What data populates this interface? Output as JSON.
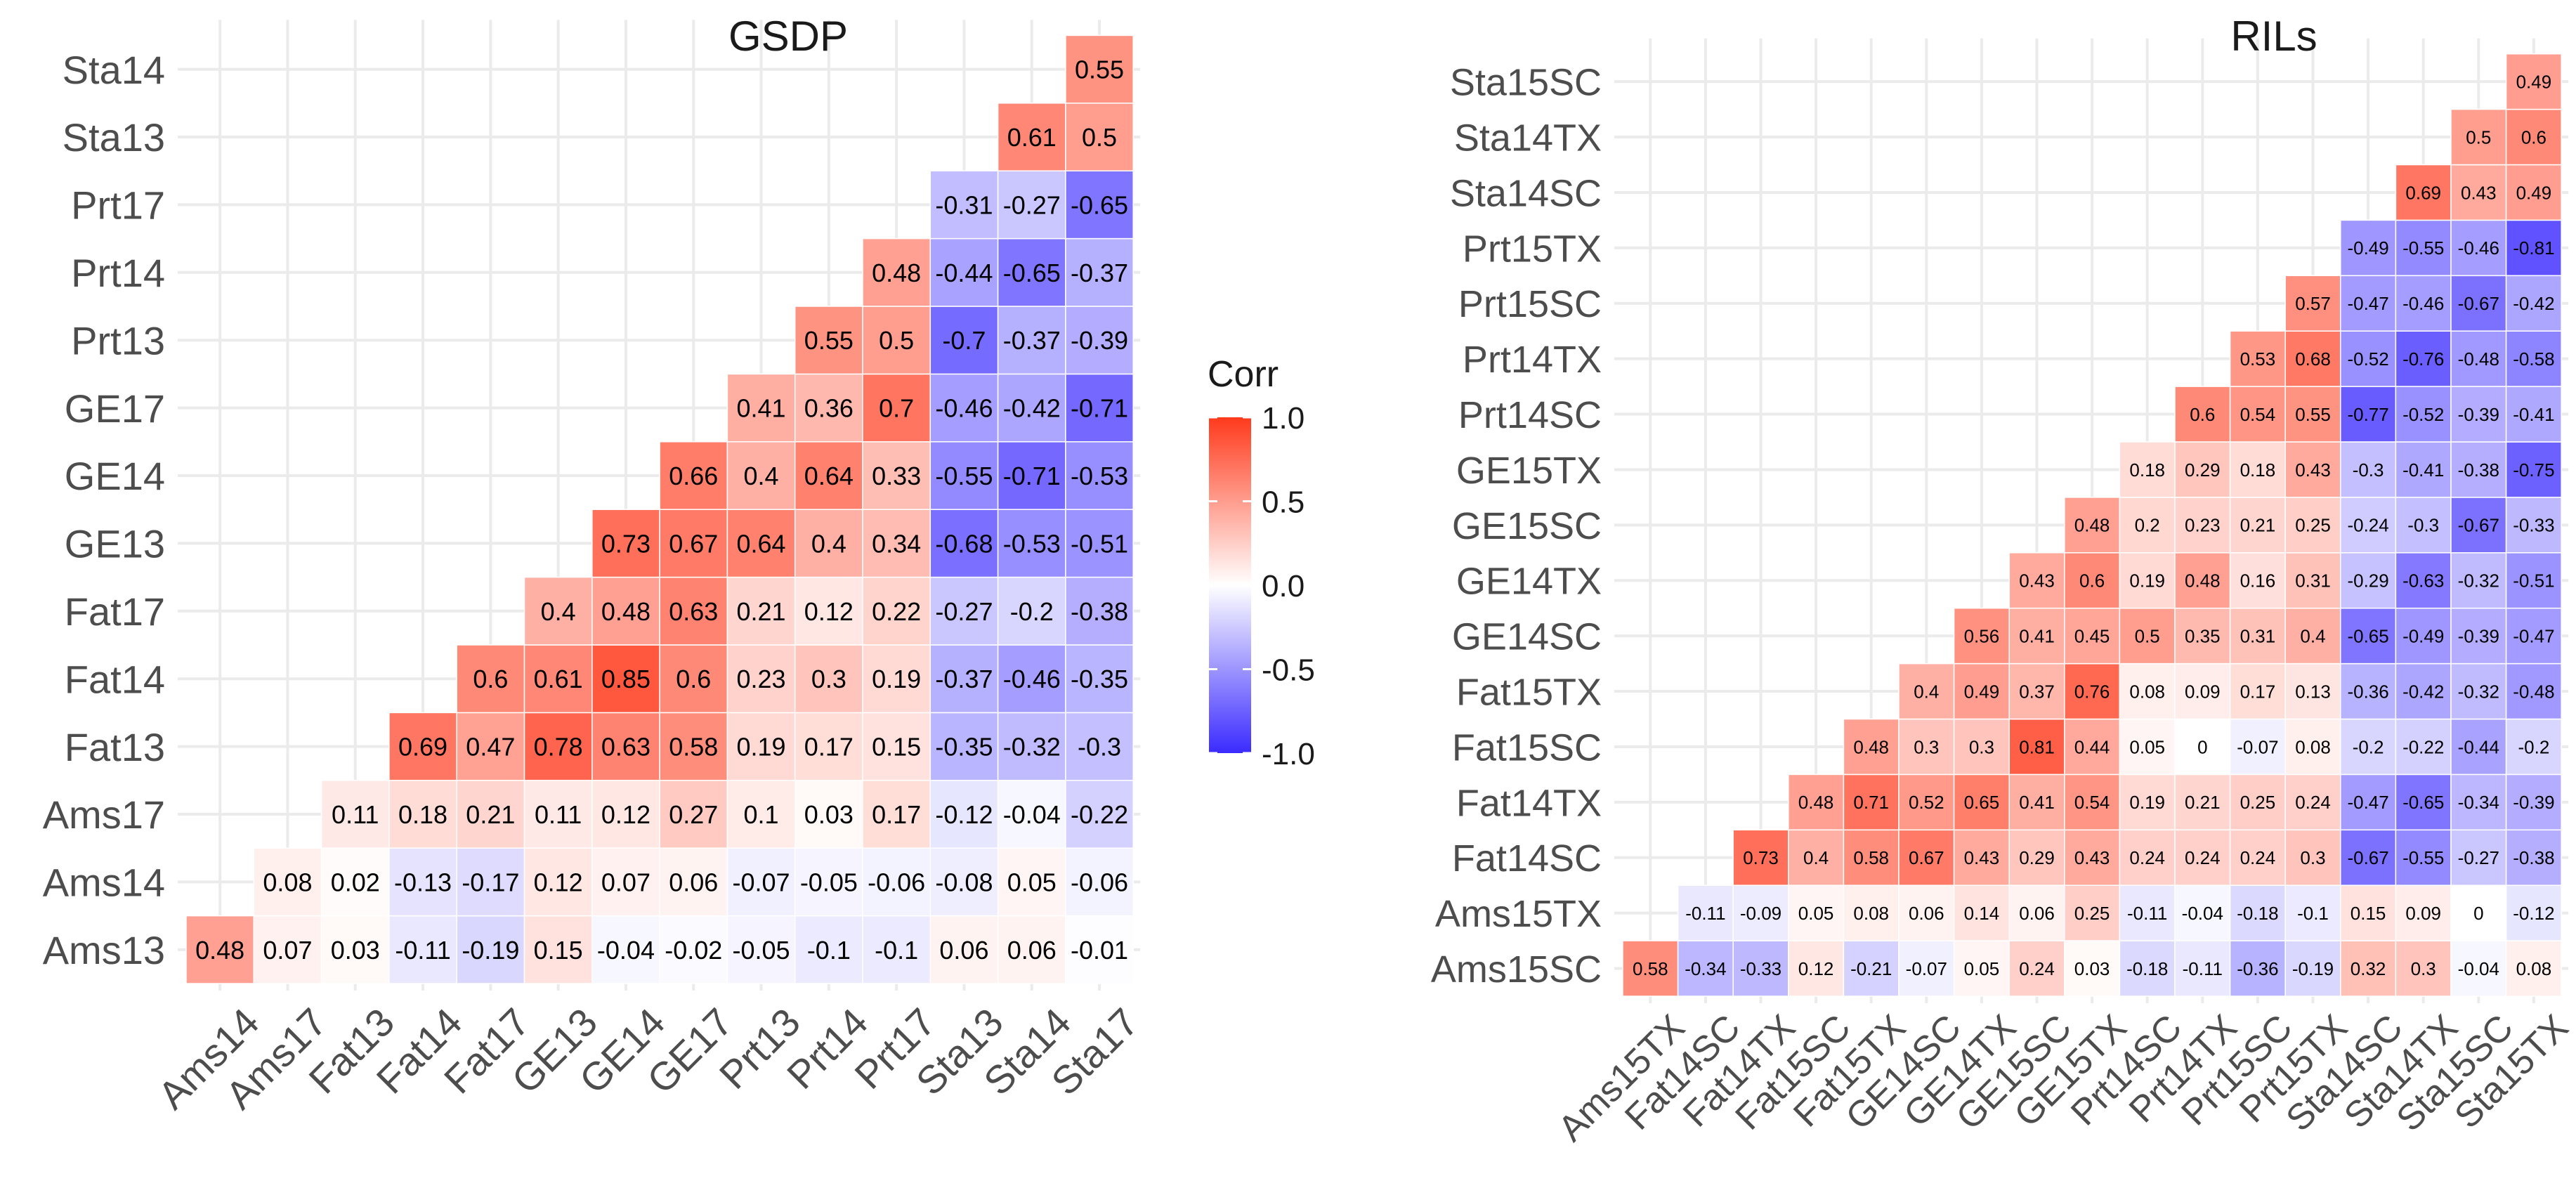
{
  "legend": {
    "title": "Corr",
    "ticks": [
      "1.0",
      "0.5",
      "0.0",
      "-0.5",
      "-1.0"
    ],
    "tick_values": [
      1,
      0.5,
      0,
      -0.5,
      -1
    ],
    "colors": {
      "low": "#3b2bff",
      "mid": "#ffffff",
      "high": "#ff3a1c"
    }
  },
  "chart_data": [
    {
      "type": "heatmap",
      "title": "GSDP",
      "x_labels": [
        "Ams14",
        "Ams17",
        "Fat13",
        "Fat14",
        "Fat17",
        "GE13",
        "GE14",
        "GE17",
        "Prt13",
        "Prt14",
        "Prt17",
        "Sta13",
        "Sta14",
        "Sta17"
      ],
      "y_labels": [
        "Ams13",
        "Ams14",
        "Ams17",
        "Fat13",
        "Fat14",
        "Fat17",
        "GE13",
        "GE14",
        "GE17",
        "Prt13",
        "Prt14",
        "Prt17",
        "Sta13",
        "Sta14"
      ],
      "rows": [
        [
          "0.48",
          "0.07",
          "0.03",
          "-0.11",
          "-0.19",
          "0.15",
          "-0.04",
          "-0.02",
          "-0.05",
          "-0.1",
          "-0.1",
          "0.06",
          "0.06",
          "-0.01"
        ],
        [
          "0.08",
          "0.02",
          "-0.13",
          "-0.17",
          "0.12",
          "0.07",
          "0.06",
          "-0.07",
          "-0.05",
          "-0.06",
          "-0.08",
          "0.05",
          "-0.06"
        ],
        [
          "0.11",
          "0.18",
          "0.21",
          "0.11",
          "0.12",
          "0.27",
          "0.1",
          "0.03",
          "0.17",
          "-0.12",
          "-0.04",
          "-0.22"
        ],
        [
          "0.69",
          "0.47",
          "0.78",
          "0.63",
          "0.58",
          "0.19",
          "0.17",
          "0.15",
          "-0.35",
          "-0.32",
          "-0.3"
        ],
        [
          "0.6",
          "0.61",
          "0.85",
          "0.6",
          "0.23",
          "0.3",
          "0.19",
          "-0.37",
          "-0.46",
          "-0.35"
        ],
        [
          "0.4",
          "0.48",
          "0.63",
          "0.21",
          "0.12",
          "0.22",
          "-0.27",
          "-0.2",
          "-0.38"
        ],
        [
          "0.73",
          "0.67",
          "0.64",
          "0.4",
          "0.34",
          "-0.68",
          "-0.53",
          "-0.51"
        ],
        [
          "0.66",
          "0.4",
          "0.64",
          "0.33",
          "-0.55",
          "-0.71",
          "-0.53"
        ],
        [
          "0.41",
          "0.36",
          "0.7",
          "-0.46",
          "-0.42",
          "-0.71"
        ],
        [
          "0.55",
          "0.5",
          "-0.7",
          "-0.37",
          "-0.39"
        ],
        [
          "0.48",
          "-0.44",
          "-0.65",
          "-0.37"
        ],
        [
          "-0.31",
          "-0.27",
          "-0.65"
        ],
        [
          "0.61",
          "0.5"
        ],
        [
          "0.55"
        ]
      ]
    },
    {
      "type": "heatmap",
      "title": "RILs",
      "x_labels": [
        "Ams15TX",
        "Fat14SC",
        "Fat14TX",
        "Fat15SC",
        "Fat15TX",
        "GE14SC",
        "GE14TX",
        "GE15SC",
        "GE15TX",
        "Prt14SC",
        "Prt14TX",
        "Prt15SC",
        "Prt15TX",
        "Sta14SC",
        "Sta14TX",
        "Sta15SC",
        "Sta15TX"
      ],
      "y_labels": [
        "Ams15SC",
        "Ams15TX",
        "Fat14SC",
        "Fat14TX",
        "Fat15SC",
        "Fat15TX",
        "GE14SC",
        "GE14TX",
        "GE15SC",
        "GE15TX",
        "Prt14SC",
        "Prt14TX",
        "Prt15SC",
        "Prt15TX",
        "Sta14SC",
        "Sta14TX",
        "Sta15SC"
      ],
      "rows": [
        [
          "0.58",
          "-0.34",
          "-0.33",
          "0.12",
          "-0.21",
          "-0.07",
          "0.05",
          "0.24",
          "0.03",
          "-0.18",
          "-0.11",
          "-0.36",
          "-0.19",
          "0.32",
          "0.3",
          "-0.04",
          "0.08"
        ],
        [
          "-0.11",
          "-0.09",
          "0.05",
          "0.08",
          "0.06",
          "0.14",
          "0.06",
          "0.25",
          "-0.11",
          "-0.04",
          "-0.18",
          "-0.1",
          "0.15",
          "0.09",
          "0",
          "-0.12"
        ],
        [
          "0.73",
          "0.4",
          "0.58",
          "0.67",
          "0.43",
          "0.29",
          "0.43",
          "0.24",
          "0.24",
          "0.24",
          "0.3",
          "-0.67",
          "-0.55",
          "-0.27",
          "-0.38"
        ],
        [
          "0.48",
          "0.71",
          "0.52",
          "0.65",
          "0.41",
          "0.54",
          "0.19",
          "0.21",
          "0.25",
          "0.24",
          "-0.47",
          "-0.65",
          "-0.34",
          "-0.39"
        ],
        [
          "0.48",
          "0.3",
          "0.3",
          "0.81",
          "0.44",
          "0.05",
          "0",
          "-0.07",
          "0.08",
          "-0.2",
          "-0.22",
          "-0.44",
          "-0.2"
        ],
        [
          "0.4",
          "0.49",
          "0.37",
          "0.76",
          "0.08",
          "0.09",
          "0.17",
          "0.13",
          "-0.36",
          "-0.42",
          "-0.32",
          "-0.48"
        ],
        [
          "0.56",
          "0.41",
          "0.45",
          "0.5",
          "0.35",
          "0.31",
          "0.4",
          "-0.65",
          "-0.49",
          "-0.39",
          "-0.47"
        ],
        [
          "0.43",
          "0.6",
          "0.19",
          "0.48",
          "0.16",
          "0.31",
          "-0.29",
          "-0.63",
          "-0.32",
          "-0.51"
        ],
        [
          "0.48",
          "0.2",
          "0.23",
          "0.21",
          "0.25",
          "-0.24",
          "-0.3",
          "-0.67",
          "-0.33"
        ],
        [
          "0.18",
          "0.29",
          "0.18",
          "0.43",
          "-0.3",
          "-0.41",
          "-0.38",
          "-0.75"
        ],
        [
          "0.6",
          "0.54",
          "0.55",
          "-0.77",
          "-0.52",
          "-0.39",
          "-0.41"
        ],
        [
          "0.53",
          "0.68",
          "-0.52",
          "-0.76",
          "-0.48",
          "-0.58"
        ],
        [
          "0.57",
          "-0.47",
          "-0.46",
          "-0.67",
          "-0.42"
        ],
        [
          "-0.49",
          "-0.55",
          "-0.46",
          "-0.81"
        ],
        [
          "0.69",
          "0.43",
          "0.49"
        ],
        [
          "0.5",
          "0.6"
        ],
        [
          "0.49"
        ]
      ]
    }
  ]
}
